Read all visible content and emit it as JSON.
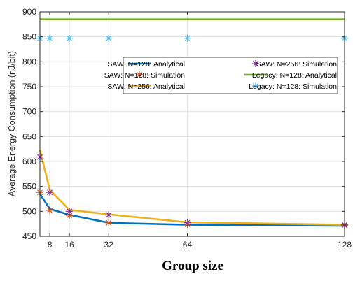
{
  "chart_data": {
    "type": "line",
    "xlabel": "Group size",
    "ylabel": "Average Energy Consumption (nJ/bit)",
    "xlim": [
      4,
      128
    ],
    "ylim": [
      450,
      900
    ],
    "x_ticks": [
      8,
      16,
      32,
      64,
      128
    ],
    "y_ticks": [
      450,
      500,
      550,
      600,
      650,
      700,
      750,
      800,
      850,
      900
    ],
    "grid": true,
    "legend_position": "top-right",
    "x": [
      4,
      8,
      16,
      32,
      64,
      128
    ],
    "series": [
      {
        "name": "SAW: N=128: Analytical",
        "kind": "line",
        "color": "#0072BD",
        "x": [
          4,
          8,
          16,
          32,
          64,
          128
        ],
        "values": [
          535,
          505,
          493,
          477,
          473,
          471
        ]
      },
      {
        "name": "SAW: N=128: Simulation",
        "kind": "marker",
        "marker": "asterisk",
        "color": "#D95319",
        "x": [
          4,
          8,
          16,
          32,
          64,
          128
        ],
        "values": [
          538,
          502,
          492,
          477,
          474,
          472
        ]
      },
      {
        "name": "SAW: N=256: Analytical",
        "kind": "line",
        "color": "#EDB120",
        "x": [
          4,
          8,
          16,
          32,
          64,
          128
        ],
        "values": [
          623,
          543,
          503,
          494,
          478,
          473
        ]
      },
      {
        "name": "SAW: N=256: Simulation",
        "kind": "marker",
        "marker": "asterisk",
        "color": "#7E2F8E",
        "x": [
          4,
          8,
          16,
          32,
          64,
          128
        ],
        "values": [
          609,
          538,
          500,
          493,
          477,
          473
        ]
      },
      {
        "name": "Legacy: N=128: Analytical",
        "kind": "line",
        "color": "#77AC30",
        "x": [
          4,
          128
        ],
        "values": [
          885,
          885
        ]
      },
      {
        "name": "Legacy: N=128: Simulation",
        "kind": "marker",
        "marker": "asterisk",
        "color": "#4DBEEE",
        "x": [
          4,
          8,
          16,
          32,
          64,
          128
        ],
        "values": [
          847,
          847,
          847,
          847,
          847,
          847
        ]
      }
    ]
  }
}
